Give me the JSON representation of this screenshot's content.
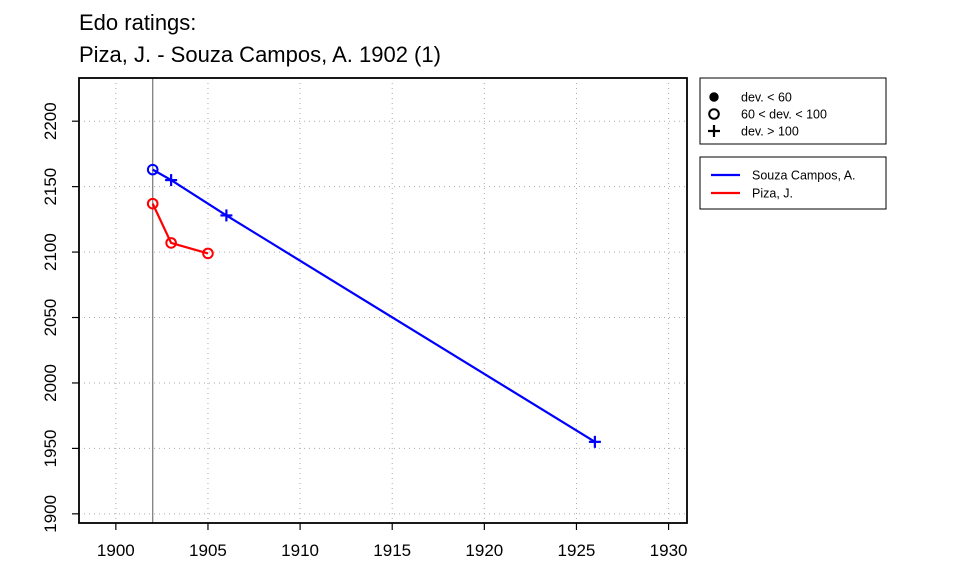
{
  "chart_data": {
    "type": "line",
    "title": "Edo ratings:",
    "subtitle": "Piza, J. - Souza Campos, A. 1902 (1)",
    "xlabel": "",
    "ylabel": "",
    "xlim": [
      1898,
      1931
    ],
    "ylim": [
      1893,
      2233
    ],
    "xticks": [
      1900,
      1905,
      1910,
      1915,
      1920,
      1925,
      1930
    ],
    "yticks": [
      1900,
      1950,
      2000,
      2050,
      2100,
      2150,
      2200
    ],
    "grid": true,
    "vline_x": 1902,
    "series": [
      {
        "name": "Souza Campos, A.",
        "color": "#0000ff",
        "points": [
          {
            "x": 1902,
            "y": 2163,
            "dev": "60 < dev. < 100"
          },
          {
            "x": 1903,
            "y": 2155,
            "dev": "dev. > 100"
          },
          {
            "x": 1906,
            "y": 2128,
            "dev": "dev. > 100"
          },
          {
            "x": 1926,
            "y": 1955,
            "dev": "dev. > 100"
          }
        ]
      },
      {
        "name": "Piza, J.",
        "color": "#ff0000",
        "points": [
          {
            "x": 1902,
            "y": 2137,
            "dev": "60 < dev. < 100"
          },
          {
            "x": 1903,
            "y": 2107,
            "dev": "60 < dev. < 100"
          },
          {
            "x": 1905,
            "y": 2099,
            "dev": "60 < dev. < 100"
          }
        ]
      }
    ],
    "legend_markers": [
      {
        "symbol": "filled-circle",
        "label": "dev. < 60"
      },
      {
        "symbol": "open-circle",
        "label": "60 < dev. < 100"
      },
      {
        "symbol": "plus",
        "label": "dev. > 100"
      }
    ],
    "legend_placement": "right"
  }
}
